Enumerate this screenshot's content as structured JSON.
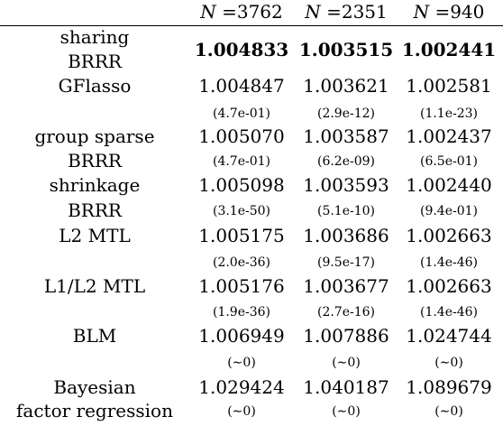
{
  "header": {
    "cols": [
      {
        "sym": "N",
        "eq": " =3762"
      },
      {
        "sym": "N",
        "eq": " =2351"
      },
      {
        "sym": "N",
        "eq": " =940"
      }
    ]
  },
  "rows": [
    {
      "name1": "sharing",
      "name2": "BRRR",
      "values": [
        "1.004833",
        "1.003515",
        "1.002441"
      ],
      "bold": true
    },
    {
      "name1": "GFlasso",
      "values": [
        "1.004847",
        "1.003621",
        "1.002581"
      ],
      "pvalues": [
        "(4.7e-01)",
        "(2.9e-12)",
        "(1.1e-23)"
      ]
    },
    {
      "name1": "group sparse",
      "name2": "BRRR",
      "values": [
        "1.005070",
        "1.003587",
        "1.002437"
      ],
      "pvalues": [
        "(4.7e-01)",
        "(6.2e-09)",
        "(6.5e-01)"
      ]
    },
    {
      "name1": "shrinkage",
      "name2": "BRRR",
      "values": [
        "1.005098",
        "1.003593",
        "1.002440"
      ],
      "pvalues": [
        "(3.1e-50)",
        "(5.1e-10)",
        "(9.4e-01)"
      ]
    },
    {
      "name1": "L2 MTL",
      "values": [
        "1.005175",
        "1.003686",
        "1.002663"
      ],
      "pvalues": [
        "(2.0e-36)",
        "(9.5e-17)",
        "(1.4e-46)"
      ]
    },
    {
      "name1": "L1/L2 MTL",
      "values": [
        "1.005176",
        "1.003677",
        "1.002663"
      ],
      "pvalues": [
        "(1.9e-36)",
        "(2.7e-16)",
        "(1.4e-46)"
      ]
    },
    {
      "name1": "BLM",
      "values": [
        "1.006949",
        "1.007886",
        "1.024744"
      ],
      "pvalues": [
        "(∼0)",
        "(∼0)",
        "(∼0)"
      ]
    },
    {
      "name1": "Bayesian",
      "name2": "factor regression",
      "values": [
        "1.029424",
        "1.040187",
        "1.089679"
      ],
      "pvalues": [
        "(∼0)",
        "(∼0)",
        "(∼0)"
      ]
    }
  ]
}
